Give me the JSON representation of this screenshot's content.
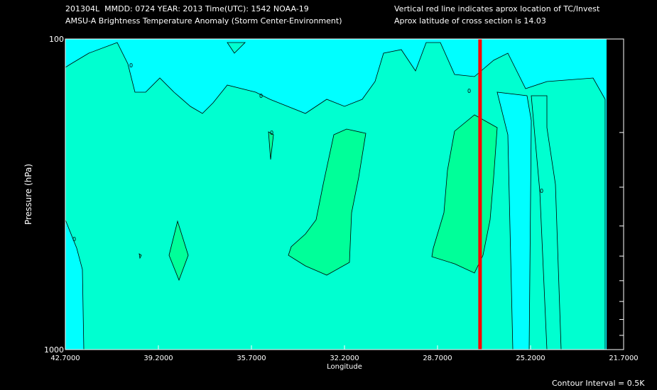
{
  "header": {
    "line1": "201304L  MMDD: 0724 YEAR: 2013 Time(UTC): 1542 NOAA-19",
    "line2": "AMSU-A Brightness Temperature Anomaly (Storm Center-Environment)",
    "note1": "Vertical red line indicates aprox location of TC/Invest",
    "note2": "Aprox latitude of cross section is 14.03"
  },
  "footer": {
    "contour_interval": "Contour Interval = 0.5K"
  },
  "colors": {
    "cyan": "#00ffff",
    "aqua": "#00ffd0",
    "green": "#00ff99",
    "red_line": "#ff0000",
    "background": "#000000"
  },
  "chart_data": {
    "type": "heatmap",
    "xlabel": "Longitude",
    "ylabel": "Pressure (hPa)",
    "x_ticks": [
      "42.7000",
      "39.2000",
      "35.7000",
      "32.2000",
      "28.7000",
      "25.2000",
      "21.7000"
    ],
    "y_ticks": [
      "100",
      "1000"
    ],
    "xlim": [
      42.7,
      21.7
    ],
    "ylim": [
      1000,
      100
    ],
    "y_scale": "log",
    "storm_longitude": 27.1,
    "contour_labels": [
      "0",
      "0",
      "0",
      "0",
      "0",
      "0"
    ],
    "contour_interval_K": 0.5
  }
}
